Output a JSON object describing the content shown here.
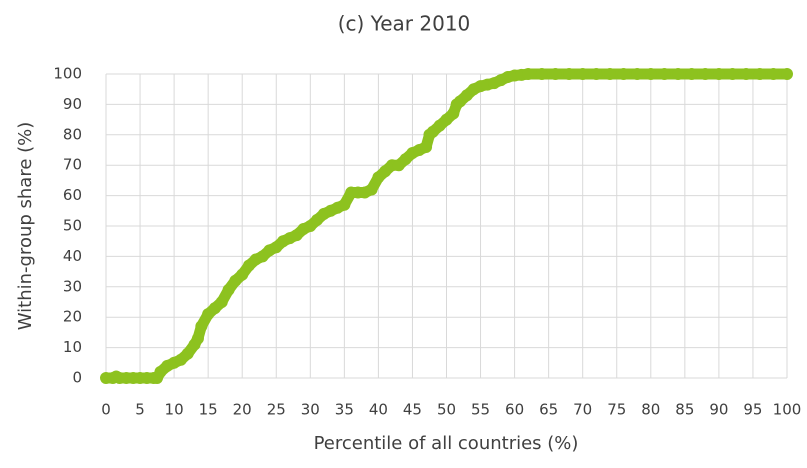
{
  "chart_data": {
    "type": "line",
    "title": "(c) Year 2010",
    "x_label": "Percentile of all countries (%)",
    "y_label": "Within-group share (%)",
    "color": "#8dc21f",
    "grid": true,
    "xlim": [
      0,
      100
    ],
    "ylim": [
      0,
      100
    ],
    "xticks": [
      0,
      5,
      10,
      15,
      20,
      25,
      30,
      35,
      40,
      45,
      50,
      55,
      60,
      65,
      70,
      75,
      80,
      85,
      90,
      95,
      100
    ],
    "yticks": [
      0,
      10,
      20,
      30,
      40,
      50,
      60,
      70,
      80,
      90,
      100
    ],
    "x": [
      0,
      1,
      1.5,
      2,
      3,
      4,
      5,
      6,
      7,
      7.5,
      8,
      9,
      10,
      11,
      12,
      13,
      13.5,
      14,
      15,
      16,
      17,
      18,
      19,
      20,
      21,
      22,
      23,
      24,
      25,
      26,
      27,
      28,
      29,
      30,
      31,
      32,
      33,
      34,
      35,
      36,
      37,
      38,
      39,
      40,
      41,
      42,
      43,
      44,
      45,
      46,
      47,
      47.5,
      48,
      49,
      50,
      51,
      51.5,
      52,
      53,
      54,
      55,
      56,
      57,
      58,
      59,
      60,
      61,
      62,
      64,
      66,
      68,
      70,
      72,
      74,
      76,
      78,
      80,
      82,
      84,
      86,
      88,
      90,
      92,
      94,
      96,
      98,
      100
    ],
    "values": [
      0,
      0,
      0.5,
      0,
      0,
      0,
      0,
      0,
      0,
      0,
      2,
      4,
      5,
      6,
      8,
      11,
      13,
      17,
      21,
      23,
      25,
      29,
      32,
      34,
      37,
      39,
      40,
      42,
      43,
      45,
      46,
      47,
      49,
      50,
      52,
      54,
      55,
      56,
      57,
      61,
      61,
      61,
      62,
      66,
      68,
      70,
      70,
      72,
      74,
      75,
      76,
      80,
      81,
      83,
      85,
      87,
      90,
      91,
      93,
      95,
      96,
      96.5,
      97,
      98,
      99,
      99.5,
      99.7,
      100,
      100,
      100,
      100,
      100,
      100,
      100,
      100,
      100,
      100,
      100,
      100,
      100,
      100,
      100,
      100,
      100,
      100,
      100,
      100
    ]
  }
}
